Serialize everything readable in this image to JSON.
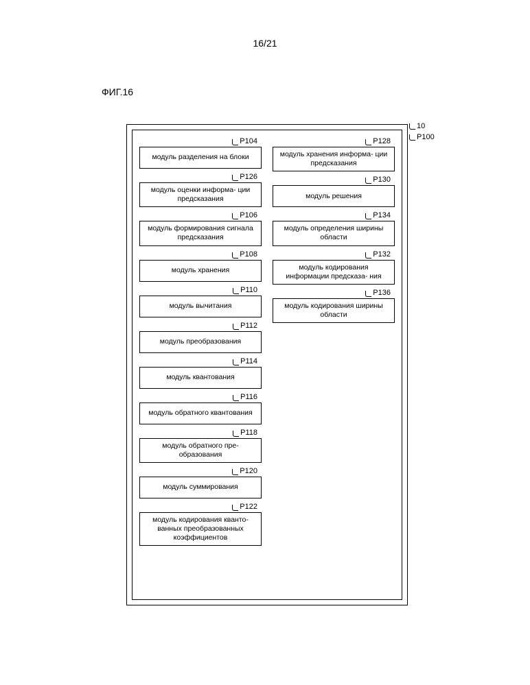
{
  "page_number": "16/21",
  "figure_title": "ФИГ.16",
  "outer_labels": {
    "l10": "10",
    "l100": "P100"
  },
  "left_column": [
    {
      "ref": "P104",
      "text": "модуль разделения на блоки"
    },
    {
      "ref": "P126",
      "text": "модуль оценки информа-\nции предсказания"
    },
    {
      "ref": "P106",
      "text": "модуль формирования сигнала предсказания"
    },
    {
      "ref": "P108",
      "text": "модуль хранения"
    },
    {
      "ref": "P110",
      "text": "модуль вычитания"
    },
    {
      "ref": "P112",
      "text": "модуль преобразования"
    },
    {
      "ref": "P114",
      "text": "модуль квантования"
    },
    {
      "ref": "P116",
      "text": "модуль обратного квантования"
    },
    {
      "ref": "P118",
      "text": "модуль обратного пре-\nобразования"
    },
    {
      "ref": "P120",
      "text": "модуль суммирования"
    },
    {
      "ref": "P122",
      "text": "модуль кодирования кванто-\nванных преобразованных коэффициентов"
    }
  ],
  "right_column": [
    {
      "ref": "P128",
      "text": "модуль хранения информа-\nции предсказания"
    },
    {
      "ref": "P130",
      "text": "модуль решения"
    },
    {
      "ref": "P134",
      "text": "модуль определения ширины области"
    },
    {
      "ref": "P132",
      "text": "модуль кодирования информации предсказа-\nния"
    },
    {
      "ref": "P136",
      "text": "модуль кодирования ширины области"
    }
  ]
}
